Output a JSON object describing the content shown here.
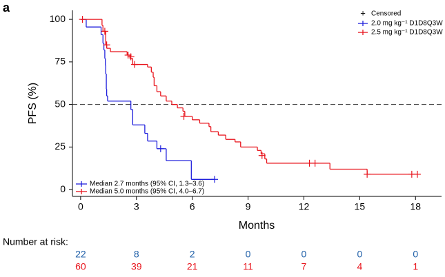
{
  "chart_data": {
    "type": "kaplan-meier",
    "panel_label": "a",
    "xlabel": "Months",
    "ylabel": "PFS (%)",
    "xlim": [
      -0.44,
      19.4
    ],
    "ylim": [
      -4,
      105.3
    ],
    "xticks": [
      0,
      3,
      6,
      9,
      12,
      15,
      18
    ],
    "yticks": [
      0,
      25,
      50,
      75,
      100
    ],
    "reference_line": 50,
    "censored_label": "Censored",
    "series": [
      {
        "name": "2.0 mg kg⁻¹ D1D8Q3W",
        "color": "#1f1fdc",
        "median_label": "Median 2.7 months (95% CI, 1.3–3.6)",
        "x": [
          0,
          0.3,
          1.1,
          1.2,
          1.25,
          1.3,
          1.33,
          1.35,
          1.38,
          1.4,
          1.45,
          2.7,
          2.8,
          3.45,
          3.6,
          4.1,
          4.6,
          5.95,
          7.2
        ],
        "values": [
          100,
          95.5,
          91,
          86,
          82,
          77,
          73,
          68,
          59,
          55,
          52,
          47,
          38,
          33,
          28.5,
          24,
          17,
          6,
          6
        ],
        "censored_x": [
          4.3,
          7.2
        ],
        "censored_values": [
          24,
          6
        ]
      },
      {
        "name": "2.5 mg kg⁻¹ D1D8Q3W",
        "color": "#e8141c",
        "median_label": "Median 5.0 months (95% CI, 4.0–6.7)",
        "x": [
          0,
          1.15,
          1.2,
          1.35,
          1.4,
          1.6,
          2.5,
          2.65,
          2.8,
          3.6,
          3.8,
          3.9,
          3.95,
          4.1,
          4.3,
          4.6,
          4.9,
          5.2,
          5.5,
          5.6,
          6.0,
          6.4,
          6.9,
          7.0,
          7.4,
          7.8,
          8.3,
          8.6,
          9.5,
          9.7,
          9.9,
          10.0,
          13.4,
          15.4,
          18.1
        ],
        "values": [
          100,
          96.5,
          93,
          85,
          83,
          81,
          79,
          77,
          73.5,
          72,
          69,
          66,
          61,
          57.5,
          55,
          52,
          50,
          48,
          46,
          43,
          41,
          39,
          37,
          34,
          32,
          29.5,
          28,
          25,
          23,
          21,
          18,
          15.5,
          12,
          9,
          9
        ],
        "censored_x": [
          0.1,
          1.3,
          1.4,
          2.55,
          2.7,
          2.9,
          5.55,
          9.75,
          12.3,
          12.6,
          15.4,
          17.8,
          18.1
        ],
        "censored_values": [
          100,
          93,
          85,
          79,
          78,
          73.5,
          43,
          20,
          15.5,
          15.5,
          9,
          9,
          9
        ]
      }
    ],
    "risk_table": {
      "title": "Number at risk:",
      "rows": [
        {
          "color": "#1f5fa8",
          "values": [
            22,
            8,
            2,
            0,
            0,
            0,
            0
          ]
        },
        {
          "color": "#e8141c",
          "values": [
            60,
            39,
            21,
            11,
            7,
            4,
            1
          ]
        }
      ]
    }
  }
}
